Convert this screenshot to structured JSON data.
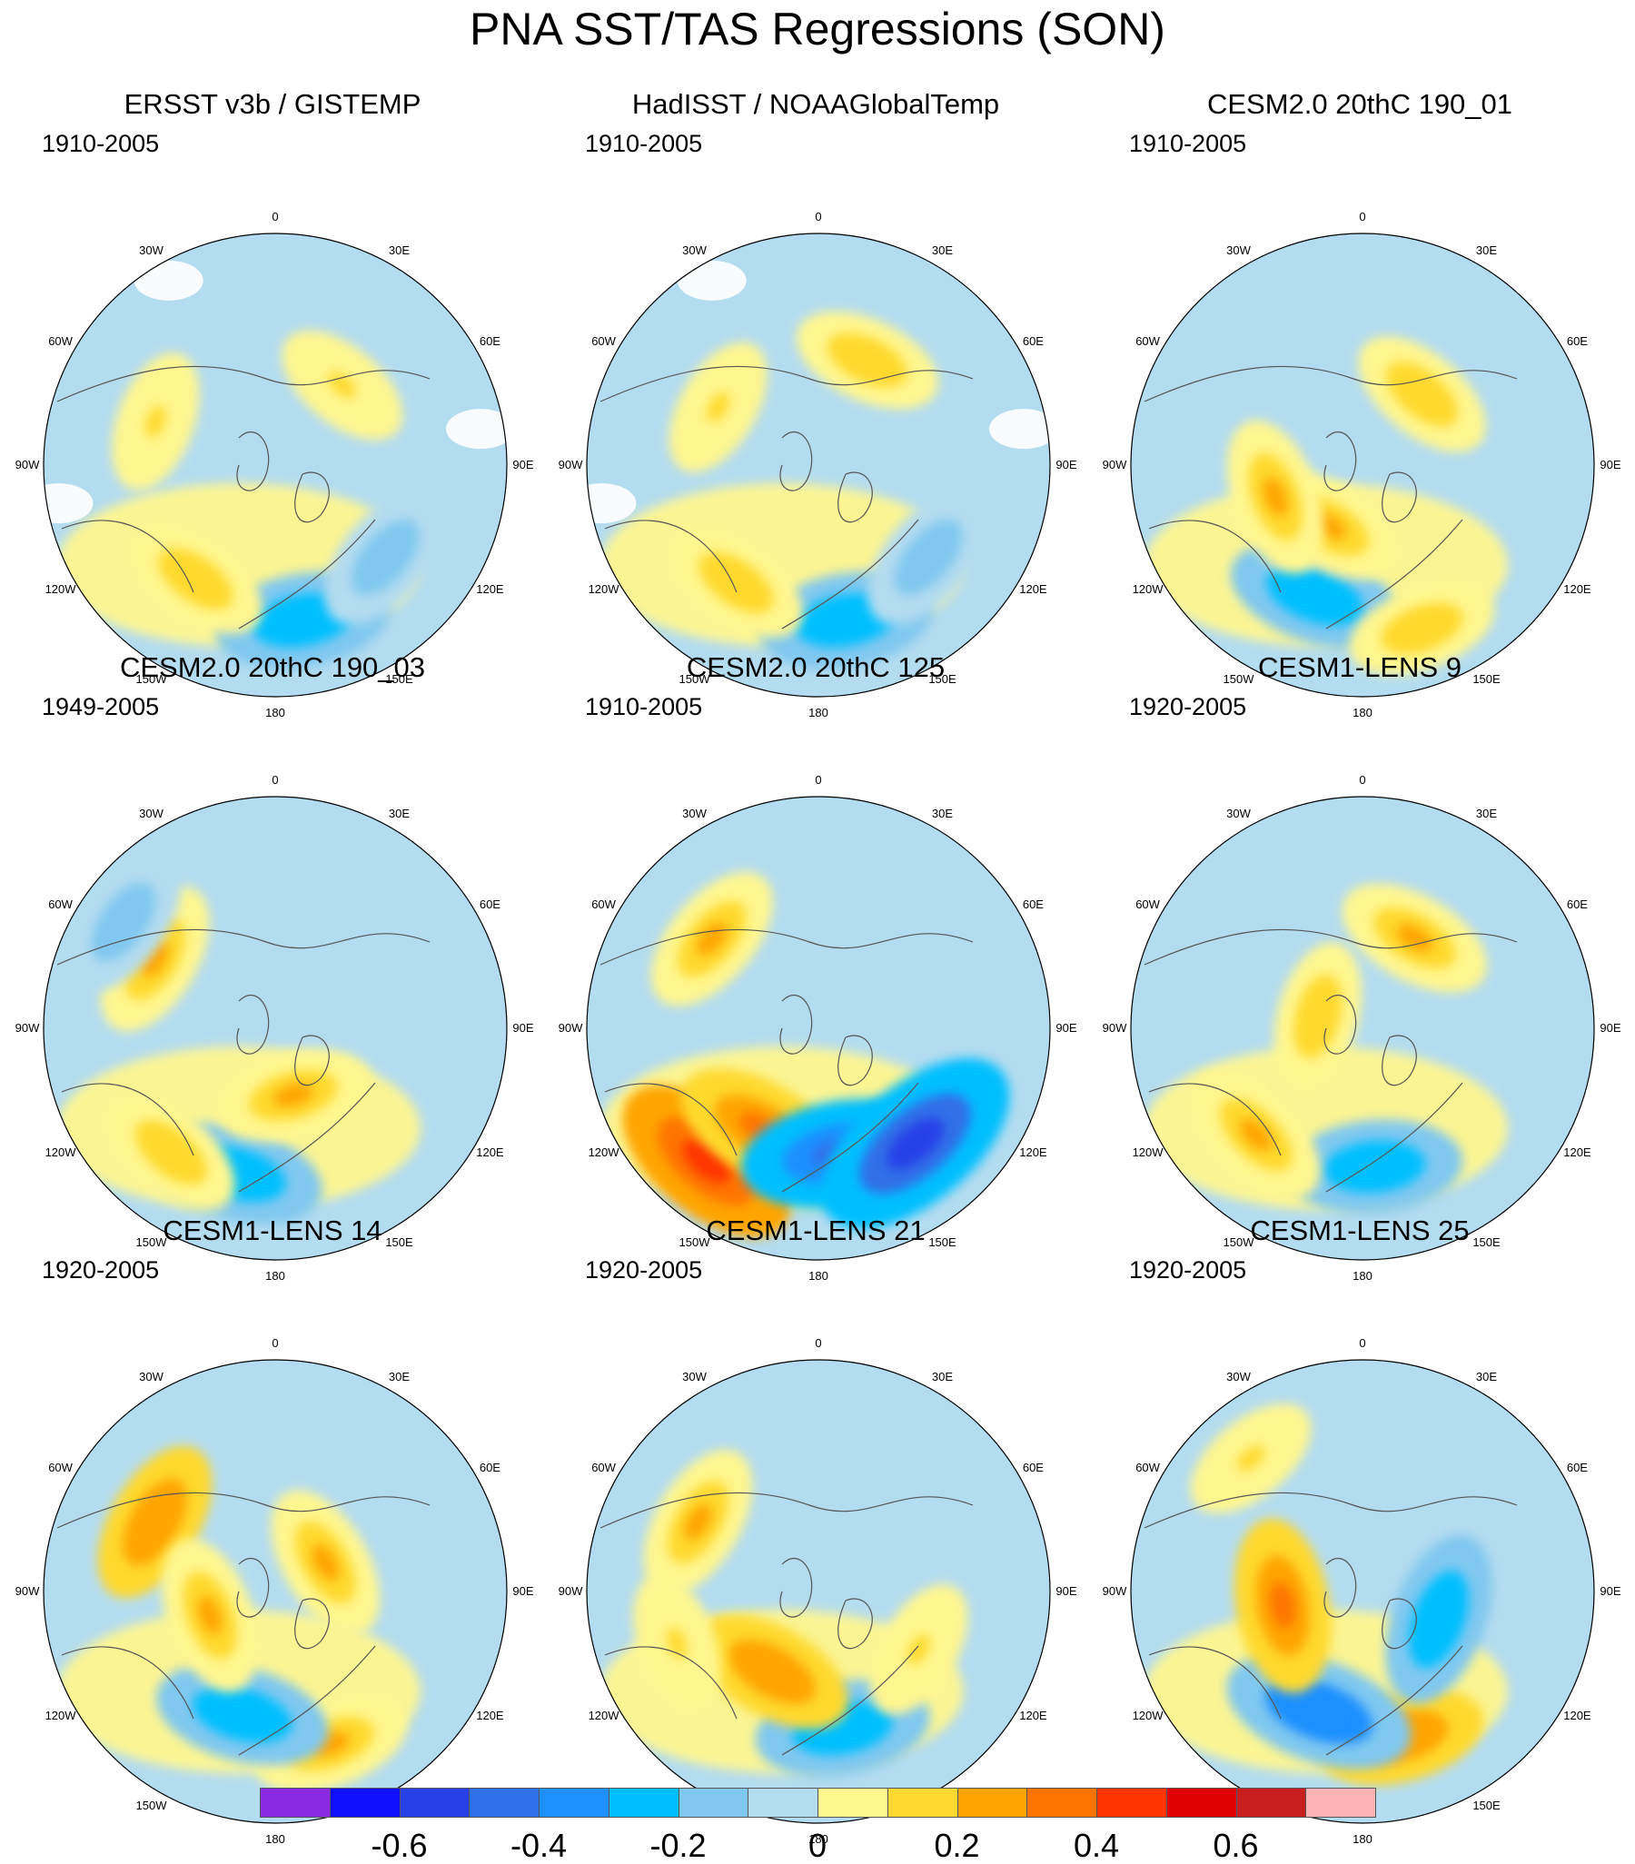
{
  "title": "PNA SST/TAS Regressions (SON)",
  "longitude_labels": [
    "180",
    "150E",
    "120E",
    "90E",
    "60E",
    "30E",
    "0",
    "30W",
    "60W",
    "90W",
    "120W",
    "150W"
  ],
  "panels": [
    {
      "title": "ERSST v3b / GISTEMP",
      "period": "1910-2005",
      "masked": true,
      "anomalies": [
        {
          "lon": 170,
          "r": 0.68,
          "value": -0.3
        },
        {
          "lon": 130,
          "r": 0.62,
          "value": -0.2
        },
        {
          "lon": -145,
          "r": 0.6,
          "value": 0.15
        },
        {
          "lon": 40,
          "r": 0.45,
          "value": 0.1
        },
        {
          "lon": -70,
          "r": 0.55,
          "value": 0.1
        }
      ]
    },
    {
      "title": "HadISST / NOAAGlobalTemp",
      "period": "1910-2005",
      "masked": true,
      "anomalies": [
        {
          "lon": 170,
          "r": 0.68,
          "value": -0.3
        },
        {
          "lon": 130,
          "r": 0.62,
          "value": -0.2
        },
        {
          "lon": -145,
          "r": 0.62,
          "value": 0.15
        },
        {
          "lon": 25,
          "r": 0.5,
          "value": 0.15
        },
        {
          "lon": -60,
          "r": 0.5,
          "value": 0.1
        }
      ]
    },
    {
      "title": "CESM2.0 20thC 190_01",
      "period": "1910-2005",
      "masked": false,
      "anomalies": [
        {
          "lon": -160,
          "r": 0.6,
          "value": -0.3
        },
        {
          "lon": 160,
          "r": 0.75,
          "value": 0.15
        },
        {
          "lon": -150,
          "r": 0.3,
          "value": 0.2
        },
        {
          "lon": -110,
          "r": 0.4,
          "value": 0.2
        },
        {
          "lon": 40,
          "r": 0.4,
          "value": 0.15
        }
      ]
    },
    {
      "title": "CESM2.0 20thC 190_03",
      "period": "1949-2005",
      "masked": false,
      "anomalies": [
        {
          "lon": -165,
          "r": 0.65,
          "value": -0.3
        },
        {
          "lon": -140,
          "r": 0.7,
          "value": 0.15
        },
        {
          "lon": -60,
          "r": 0.6,
          "value": 0.2
        },
        {
          "lon": -55,
          "r": 0.8,
          "value": -0.2
        },
        {
          "lon": 165,
          "r": 0.3,
          "value": 0.2
        }
      ]
    },
    {
      "title": "CESM2.0 20thC 125",
      "period": "1910-2005",
      "masked": false,
      "anomalies": [
        {
          "lon": -140,
          "r": 0.75,
          "value": 0.45
        },
        {
          "lon": -150,
          "r": 0.5,
          "value": 0.3
        },
        {
          "lon": 170,
          "r": 0.55,
          "value": -0.45
        },
        {
          "lon": 140,
          "r": 0.65,
          "value": -0.6
        },
        {
          "lon": -50,
          "r": 0.6,
          "value": 0.2
        }
      ]
    },
    {
      "title": "CESM1-LENS 9",
      "period": "1920-2005",
      "masked": false,
      "anomalies": [
        {
          "lon": 175,
          "r": 0.6,
          "value": -0.3
        },
        {
          "lon": -135,
          "r": 0.65,
          "value": 0.2
        },
        {
          "lon": -75,
          "r": 0.2,
          "value": 0.15
        },
        {
          "lon": 30,
          "r": 0.45,
          "value": 0.2
        },
        {
          "lon": -60,
          "r": 0.65,
          "value": -0.1
        }
      ]
    },
    {
      "title": "CESM1-LENS 14",
      "period": "1920-2005",
      "masked": false,
      "anomalies": [
        {
          "lon": 160,
          "r": 0.7,
          "value": 0.2
        },
        {
          "lon": -165,
          "r": 0.55,
          "value": -0.3
        },
        {
          "lon": -60,
          "r": 0.6,
          "value": 0.25
        },
        {
          "lon": -110,
          "r": 0.3,
          "value": 0.2
        },
        {
          "lon": 60,
          "r": 0.25,
          "value": 0.2
        }
      ]
    },
    {
      "title": "CESM1-LENS 21",
      "period": "1920-2005",
      "masked": false,
      "anomalies": [
        {
          "lon": 170,
          "r": 0.6,
          "value": -0.3
        },
        {
          "lon": -150,
          "r": 0.4,
          "value": 0.25
        },
        {
          "lon": -60,
          "r": 0.6,
          "value": 0.2
        },
        {
          "lon": 120,
          "r": 0.5,
          "value": 0.1
        },
        {
          "lon": -110,
          "r": 0.65,
          "value": 0.1
        }
      ]
    },
    {
      "title": "CESM1-LENS 25",
      "period": "1920-2005",
      "masked": false,
      "anomalies": [
        {
          "lon": 165,
          "r": 0.65,
          "value": 0.25
        },
        {
          "lon": -160,
          "r": 0.55,
          "value": -0.4
        },
        {
          "lon": -100,
          "r": 0.35,
          "value": 0.3
        },
        {
          "lon": 110,
          "r": 0.35,
          "value": -0.3
        },
        {
          "lon": -40,
          "r": 0.75,
          "value": 0.1
        }
      ]
    }
  ],
  "colorbar": {
    "colors": [
      "#8a2be2",
      "#1010ff",
      "#2840e8",
      "#3070e8",
      "#1e90ff",
      "#00bfff",
      "#80c8f0",
      "#b4dcf0",
      "#fff68f",
      "#ffd92f",
      "#ffa500",
      "#ff7400",
      "#ff3500",
      "#e00000",
      "#c81e1e",
      "#ffb4b4"
    ],
    "tick_labels": [
      "-0.6",
      "-0.4",
      "-0.2",
      "0",
      "0.2",
      "0.4",
      "0.6"
    ]
  }
}
